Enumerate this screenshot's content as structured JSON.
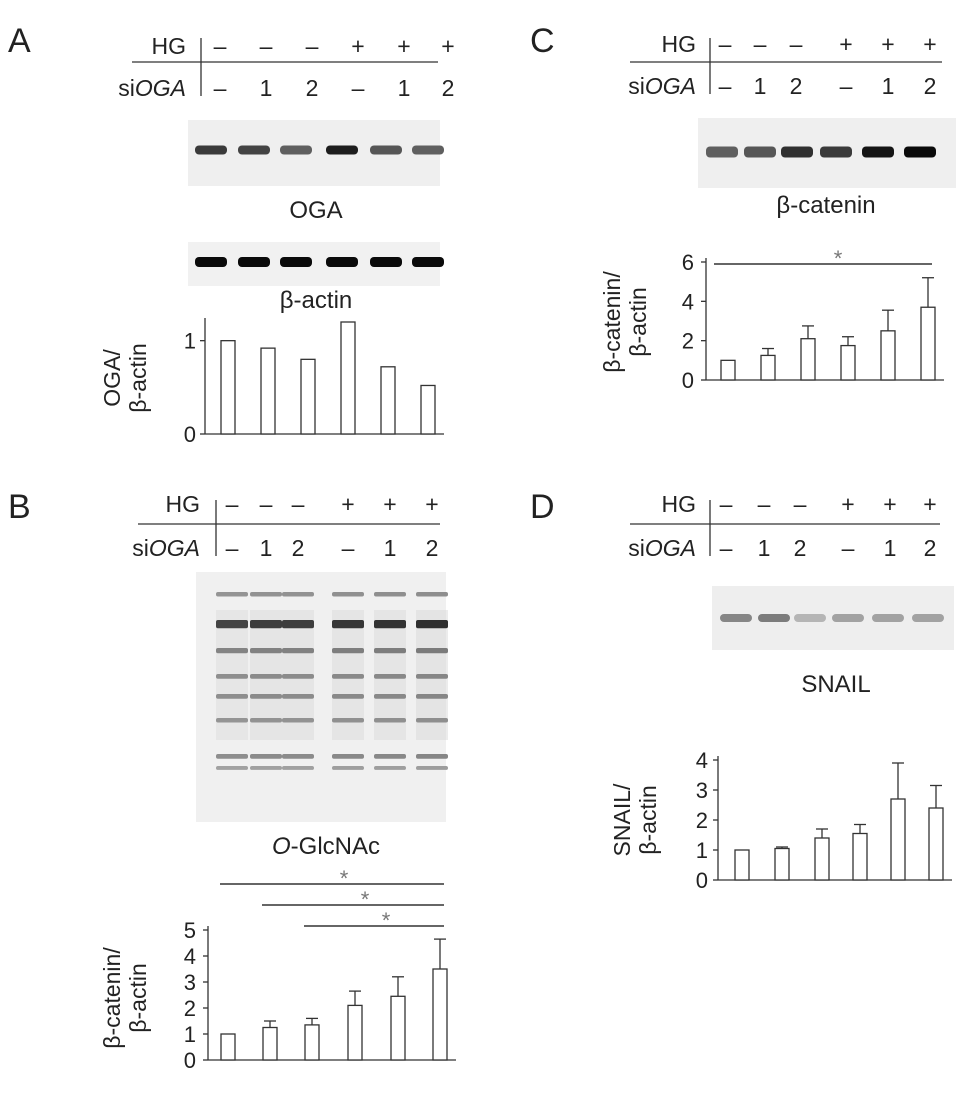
{
  "panels": [
    {
      "id": "A",
      "label": "A",
      "header": {
        "hg_label": "HG",
        "sioga_prefix": "si",
        "sioga_gene": "OGA",
        "hg": [
          "–",
          "–",
          "–",
          "+",
          "+",
          "+"
        ],
        "sioga": [
          "–",
          "1",
          "2",
          "–",
          "1",
          "2"
        ]
      },
      "blots": [
        {
          "label": "OGA",
          "label_italic": "",
          "intensity": [
            0.75,
            0.7,
            0.55,
            0.9,
            0.6,
            0.55
          ]
        },
        {
          "label": "β-actin",
          "label_italic": "",
          "intensity": [
            1,
            1,
            1,
            1,
            1,
            1
          ]
        }
      ],
      "y_label_lines": [
        "OGA/",
        "β-actin"
      ],
      "yticks": [
        "0",
        "1"
      ],
      "ylim": [
        0,
        1.2
      ],
      "values": [
        1.0,
        0.92,
        0.8,
        1.2,
        0.72,
        0.52
      ],
      "errors": [
        0,
        0,
        0,
        0,
        0,
        0
      ],
      "significance": []
    },
    {
      "id": "B",
      "label": "B",
      "header": {
        "hg_label": "HG",
        "sioga_prefix": "si",
        "sioga_gene": "OGA",
        "hg": [
          "–",
          "–",
          "–",
          "+",
          "+",
          "+"
        ],
        "sioga": [
          "–",
          "1",
          "2",
          "–",
          "1",
          "2"
        ]
      },
      "blots": [
        {
          "label": "-GlcNAc",
          "label_italic": "O",
          "intensity": [
            0.8,
            0.85,
            0.85,
            0.9,
            0.92,
            0.95
          ]
        }
      ],
      "y_label_lines": [
        "β-catenin/",
        "β-actin"
      ],
      "yticks": [
        "0",
        "1",
        "2",
        "3",
        "4",
        "5"
      ],
      "ylim": [
        0,
        5
      ],
      "values": [
        1.0,
        1.25,
        1.35,
        2.1,
        2.45,
        3.5
      ],
      "errors": [
        0,
        0.25,
        0.25,
        0.55,
        0.75,
        1.15
      ],
      "significance": [
        {
          "from": 0,
          "to": 5,
          "label": "*"
        },
        {
          "from": 1,
          "to": 5,
          "label": "*"
        },
        {
          "from": 2,
          "to": 5,
          "label": "*"
        }
      ]
    },
    {
      "id": "C",
      "label": "C",
      "header": {
        "hg_label": "HG",
        "sioga_prefix": "si",
        "sioga_gene": "OGA",
        "hg": [
          "–",
          "–",
          "–",
          "+",
          "+",
          "+"
        ],
        "sioga": [
          "–",
          "1",
          "2",
          "–",
          "1",
          "2"
        ]
      },
      "blots": [
        {
          "label": "β-catenin",
          "label_italic": "",
          "intensity": [
            0.55,
            0.6,
            0.8,
            0.75,
            0.95,
            1.0
          ]
        }
      ],
      "y_label_lines": [
        "β-catenin/",
        "β-actin"
      ],
      "yticks": [
        "0",
        "2",
        "4",
        "6"
      ],
      "ylim": [
        0,
        6
      ],
      "values": [
        1.0,
        1.25,
        2.1,
        1.75,
        2.5,
        3.7
      ],
      "errors": [
        0,
        0.35,
        0.65,
        0.45,
        1.05,
        1.5
      ],
      "significance": [
        {
          "from": 0,
          "to": 5,
          "label": "*"
        }
      ]
    },
    {
      "id": "D",
      "label": "D",
      "header": {
        "hg_label": "HG",
        "sioga_prefix": "si",
        "sioga_gene": "OGA",
        "hg": [
          "–",
          "–",
          "–",
          "+",
          "+",
          "+"
        ],
        "sioga": [
          "–",
          "1",
          "2",
          "–",
          "1",
          "2"
        ]
      },
      "blots": [
        {
          "label": "SNAIL",
          "label_italic": "",
          "intensity": [
            0.35,
            0.4,
            0.1,
            0.2,
            0.2,
            0.2
          ]
        }
      ],
      "y_label_lines": [
        "SNAIL/",
        "β-actin"
      ],
      "yticks": [
        "0",
        "1",
        "2",
        "3",
        "4"
      ],
      "ylim": [
        0,
        4
      ],
      "values": [
        1.0,
        1.05,
        1.4,
        1.55,
        2.7,
        2.4
      ],
      "errors": [
        0,
        0.05,
        0.3,
        0.3,
        1.2,
        0.75
      ],
      "significance": []
    }
  ]
}
